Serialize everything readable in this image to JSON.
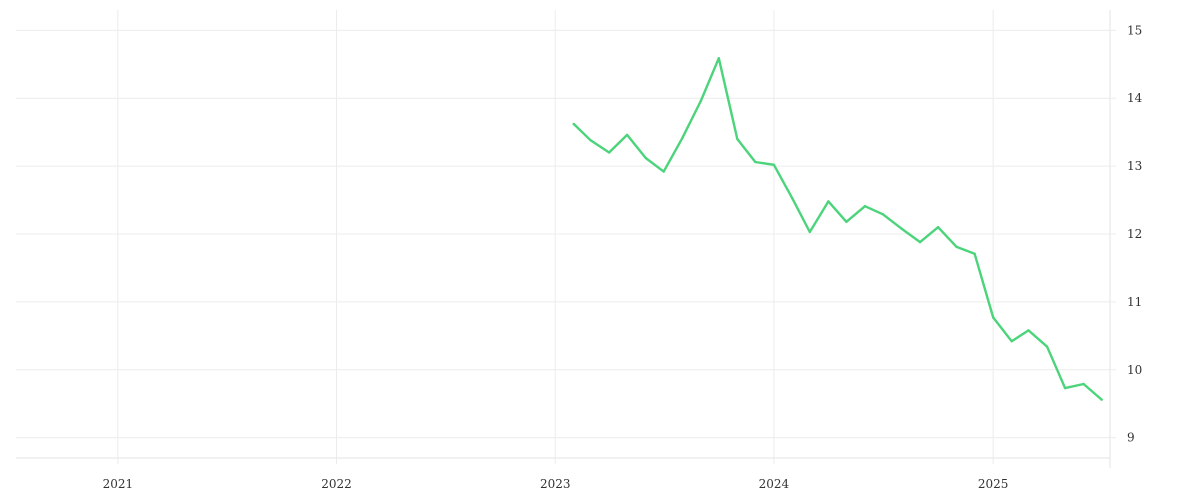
{
  "chart_data": {
    "type": "line",
    "title": "",
    "xlabel": "",
    "ylabel": "",
    "x_axis": {
      "type": "date",
      "range": [
        "2020-07-15",
        "2025-07-15"
      ],
      "ticks": [
        "2021",
        "2022",
        "2023",
        "2024",
        "2025"
      ],
      "tick_dates": [
        "2021-01-01",
        "2022-01-01",
        "2023-01-01",
        "2024-01-01",
        "2025-01-01"
      ]
    },
    "y_axis": {
      "position": "right",
      "range": [
        8.7,
        15.3
      ],
      "ticks": [
        "9",
        "10",
        "11",
        "12",
        "13",
        "14",
        "15"
      ],
      "tick_values": [
        9,
        10,
        11,
        12,
        13,
        14,
        15
      ]
    },
    "grid": true,
    "legend": "none",
    "series": [
      {
        "color": "#4cd47b",
        "x": [
          "2023-02-01",
          "2023-03-01",
          "2023-04-01",
          "2023-05-01",
          "2023-06-01",
          "2023-07-01",
          "2023-08-01",
          "2023-09-01",
          "2023-10-01",
          "2023-11-01",
          "2023-12-01",
          "2024-01-01",
          "2024-02-01",
          "2024-03-01",
          "2024-04-01",
          "2024-05-01",
          "2024-06-01",
          "2024-07-01",
          "2024-08-01",
          "2024-09-01",
          "2024-10-01",
          "2024-11-01",
          "2024-12-01",
          "2025-01-01",
          "2025-02-01",
          "2025-03-01",
          "2025-04-01",
          "2025-05-01",
          "2025-06-01",
          "2025-07-01"
        ],
        "y": [
          13.62,
          13.38,
          13.2,
          13.46,
          13.12,
          12.92,
          13.41,
          13.96,
          14.59,
          13.4,
          13.06,
          13.02,
          12.52,
          12.03,
          12.48,
          12.18,
          12.41,
          12.29,
          12.08,
          11.88,
          12.1,
          11.81,
          11.71,
          10.77,
          10.42,
          10.58,
          10.34,
          9.73,
          9.79,
          9.56
        ]
      }
    ]
  }
}
